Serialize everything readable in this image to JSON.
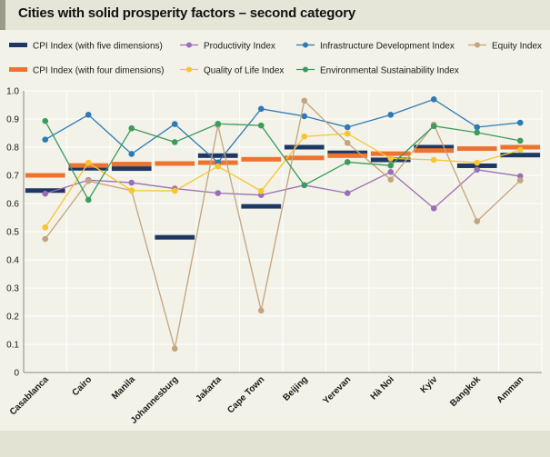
{
  "title": "Cities with solid prosperity factors – second category",
  "colors": {
    "cpi5": "#1f3763",
    "cpi4": "#ed7331",
    "productivity": "#9b6fb5",
    "quality": "#f8c431",
    "infrastructure": "#2f7ab5",
    "environmental": "#3a9b5b",
    "equity": "#c4a47e"
  },
  "legend": [
    {
      "key": "cpi5",
      "label": "CPI Index (with five dimensions)",
      "shape": "bar"
    },
    {
      "key": "productivity",
      "label": "Productivity Index",
      "shape": "line"
    },
    {
      "key": "infrastructure",
      "label": "Infrastructure Development Index",
      "shape": "line"
    },
    {
      "key": "equity",
      "label": "Equity Index",
      "shape": "line"
    },
    {
      "key": "cpi4",
      "label": "CPI Index (with four dimensions)",
      "shape": "bar"
    },
    {
      "key": "quality",
      "label": "Quality of Life Index",
      "shape": "line"
    },
    {
      "key": "environmental",
      "label": "Environmental Sustainability Index",
      "shape": "line"
    }
  ],
  "chart_data": {
    "type": "line",
    "title": "Cities with solid prosperity factors – second category",
    "categories": [
      "Casablanca",
      "Cairo",
      "Manila",
      "Johannesburg",
      "Jakarta",
      "Cape Town",
      "Beijing",
      "Yerevan",
      "Hà Noi",
      "Kyiv",
      "Bangkok",
      "Amman"
    ],
    "ylim": [
      0,
      1.0
    ],
    "yticks": [
      "0",
      "0.1",
      "0.2",
      "0.3",
      "0.4",
      "0.5",
      "0.6",
      "0.7",
      "0.8",
      "0.9",
      "1.0"
    ],
    "grid": true,
    "bar_series": [
      {
        "key": "cpi5",
        "name": "CPI Index (with five dimensions)",
        "values": [
          0.646,
          0.725,
          0.724,
          0.48,
          0.77,
          0.59,
          0.8,
          0.78,
          0.755,
          0.8,
          0.734,
          0.772
        ]
      },
      {
        "key": "cpi4",
        "name": "CPI Index (with four dimensions)",
        "values": [
          0.7,
          0.735,
          0.74,
          0.742,
          0.745,
          0.757,
          0.762,
          0.77,
          0.777,
          0.788,
          0.795,
          0.8
        ]
      }
    ],
    "series": [
      {
        "key": "productivity",
        "name": "Productivity Index",
        "values": [
          0.635,
          0.683,
          0.674,
          0.653,
          0.637,
          0.63,
          0.665,
          0.637,
          0.712,
          0.583,
          0.72,
          0.697
        ]
      },
      {
        "key": "infrastructure",
        "name": "Infrastructure Development Index",
        "values": [
          0.827,
          0.915,
          0.776,
          0.882,
          0.746,
          0.936,
          0.91,
          0.871,
          0.915,
          0.97,
          0.871,
          0.887
        ]
      },
      {
        "key": "equity",
        "name": "Equity Index",
        "values": [
          0.474,
          0.68,
          0.646,
          0.085,
          0.878,
          0.22,
          0.965,
          0.815,
          0.685,
          0.88,
          0.537,
          0.682
        ]
      },
      {
        "key": "quality",
        "name": "Quality of Life Index",
        "values": [
          0.515,
          0.745,
          0.646,
          0.645,
          0.732,
          0.644,
          0.838,
          0.848,
          0.76,
          0.755,
          0.745,
          0.79
        ]
      },
      {
        "key": "environmental",
        "name": "Environmental Sustainability Index",
        "values": [
          0.893,
          0.613,
          0.867,
          0.818,
          0.883,
          0.877,
          0.665,
          0.747,
          0.735,
          0.875,
          0.852,
          0.823
        ]
      }
    ]
  }
}
